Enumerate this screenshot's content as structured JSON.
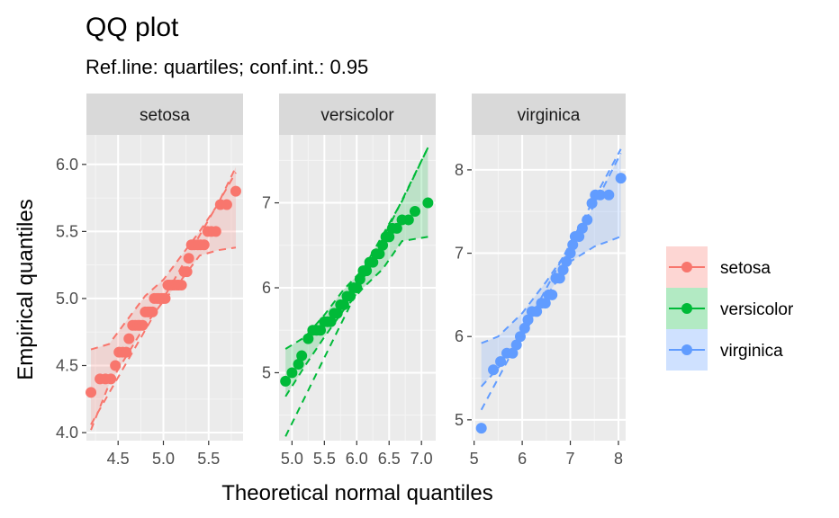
{
  "chart_data": {
    "type": "scatter",
    "title": "QQ plot",
    "subtitle": "Ref.line: quartiles; conf.int.: 0.95",
    "xlabel": "Theoretical normal quantiles",
    "ylabel": "Empirical quantiles",
    "grid": true,
    "legend_position": "right",
    "panels": [
      {
        "name": "setosa",
        "color": "#F8766D",
        "xlim": [
          4.15,
          5.88
        ],
        "ylim": [
          3.94,
          6.22
        ],
        "x_ticks": [
          "4.5",
          "5.0",
          "5.5"
        ],
        "x_tick_values": [
          4.5,
          5.0,
          5.5
        ],
        "y_ticks": [
          "4.0",
          "4.5",
          "5.0",
          "5.5",
          "6.0"
        ],
        "y_tick_values": [
          4.0,
          4.5,
          5.0,
          5.5,
          6.0
        ],
        "points": [
          [
            4.2,
            4.3
          ],
          [
            4.3,
            4.4
          ],
          [
            4.36,
            4.4
          ],
          [
            4.42,
            4.4
          ],
          [
            4.47,
            4.5
          ],
          [
            4.51,
            4.6
          ],
          [
            4.55,
            4.6
          ],
          [
            4.59,
            4.6
          ],
          [
            4.62,
            4.7
          ],
          [
            4.66,
            4.8
          ],
          [
            4.69,
            4.8
          ],
          [
            4.72,
            4.8
          ],
          [
            4.74,
            4.8
          ],
          [
            4.77,
            4.8
          ],
          [
            4.8,
            4.9
          ],
          [
            4.83,
            4.9
          ],
          [
            4.85,
            4.9
          ],
          [
            4.88,
            4.9
          ],
          [
            4.9,
            5.0
          ],
          [
            4.93,
            5.0
          ],
          [
            4.95,
            5.0
          ],
          [
            4.98,
            5.0
          ],
          [
            5.0,
            5.0
          ],
          [
            5.02,
            5.0
          ],
          [
            5.05,
            5.1
          ],
          [
            5.07,
            5.1
          ],
          [
            5.1,
            5.1
          ],
          [
            5.12,
            5.1
          ],
          [
            5.15,
            5.1
          ],
          [
            5.17,
            5.1
          ],
          [
            5.2,
            5.1
          ],
          [
            5.23,
            5.2
          ],
          [
            5.26,
            5.2
          ],
          [
            5.28,
            5.3
          ],
          [
            5.31,
            5.4
          ],
          [
            5.34,
            5.4
          ],
          [
            5.38,
            5.4
          ],
          [
            5.41,
            5.4
          ],
          [
            5.45,
            5.4
          ],
          [
            5.49,
            5.5
          ],
          [
            5.53,
            5.5
          ],
          [
            5.58,
            5.5
          ],
          [
            5.63,
            5.7
          ],
          [
            5.7,
            5.7
          ],
          [
            5.8,
            5.8
          ]
        ],
        "ref_line": [
          [
            4.2,
            4.06
          ],
          [
            5.8,
            5.94
          ]
        ],
        "band_upper": [
          [
            4.2,
            4.62
          ],
          [
            4.4,
            4.66
          ],
          [
            4.6,
            4.84
          ],
          [
            4.8,
            5.02
          ],
          [
            5.0,
            5.14
          ],
          [
            5.2,
            5.32
          ],
          [
            5.4,
            5.5
          ],
          [
            5.6,
            5.7
          ],
          [
            5.8,
            5.98
          ]
        ],
        "band_lower": [
          [
            4.2,
            4.02
          ],
          [
            4.4,
            4.36
          ],
          [
            4.6,
            4.58
          ],
          [
            4.8,
            4.8
          ],
          [
            5.0,
            4.98
          ],
          [
            5.2,
            5.14
          ],
          [
            5.4,
            5.32
          ],
          [
            5.6,
            5.36
          ],
          [
            5.8,
            5.38
          ]
        ]
      },
      {
        "name": "versicolor",
        "color": "#00BA38",
        "xlim": [
          4.8,
          7.22
        ],
        "ylim": [
          4.2,
          7.8
        ],
        "x_ticks": [
          "5.0",
          "5.5",
          "6.0",
          "6.5",
          "7.0"
        ],
        "x_tick_values": [
          5.0,
          5.5,
          6.0,
          6.5,
          7.0
        ],
        "y_ticks": [
          "5",
          "6",
          "7"
        ],
        "y_tick_values": [
          5,
          6,
          7
        ],
        "points": [
          [
            4.9,
            4.9
          ],
          [
            5.0,
            5.0
          ],
          [
            5.1,
            5.1
          ],
          [
            5.15,
            5.2
          ],
          [
            5.25,
            5.4
          ],
          [
            5.32,
            5.5
          ],
          [
            5.38,
            5.5
          ],
          [
            5.44,
            5.5
          ],
          [
            5.5,
            5.6
          ],
          [
            5.55,
            5.6
          ],
          [
            5.6,
            5.6
          ],
          [
            5.65,
            5.7
          ],
          [
            5.7,
            5.7
          ],
          [
            5.75,
            5.8
          ],
          [
            5.8,
            5.8
          ],
          [
            5.85,
            5.9
          ],
          [
            5.9,
            5.9
          ],
          [
            5.95,
            6.0
          ],
          [
            6.0,
            6.0
          ],
          [
            6.05,
            6.1
          ],
          [
            6.1,
            6.2
          ],
          [
            6.15,
            6.2
          ],
          [
            6.2,
            6.3
          ],
          [
            6.25,
            6.3
          ],
          [
            6.3,
            6.4
          ],
          [
            6.35,
            6.4
          ],
          [
            6.4,
            6.5
          ],
          [
            6.45,
            6.6
          ],
          [
            6.5,
            6.6
          ],
          [
            6.55,
            6.7
          ],
          [
            6.62,
            6.7
          ],
          [
            6.7,
            6.8
          ],
          [
            6.8,
            6.8
          ],
          [
            6.9,
            6.9
          ],
          [
            7.1,
            7.0
          ]
        ],
        "ref_line": [
          [
            4.9,
            4.25
          ],
          [
            7.1,
            7.65
          ]
        ],
        "band_upper": [
          [
            4.9,
            5.28
          ],
          [
            5.2,
            5.42
          ],
          [
            5.5,
            5.68
          ],
          [
            5.8,
            5.98
          ],
          [
            6.1,
            6.22
          ],
          [
            6.4,
            6.62
          ],
          [
            6.7,
            7.02
          ],
          [
            7.1,
            7.65
          ]
        ],
        "band_lower": [
          [
            4.9,
            4.72
          ],
          [
            5.2,
            5.08
          ],
          [
            5.5,
            5.42
          ],
          [
            5.8,
            5.74
          ],
          [
            6.1,
            6.0
          ],
          [
            6.4,
            6.22
          ],
          [
            6.7,
            6.55
          ],
          [
            7.1,
            6.6
          ]
        ]
      },
      {
        "name": "virginica",
        "color": "#619CFF",
        "xlim": [
          4.95,
          8.15
        ],
        "ylim": [
          4.75,
          8.42
        ],
        "x_ticks": [
          "5",
          "6",
          "7",
          "8"
        ],
        "x_tick_values": [
          5,
          6,
          7,
          8
        ],
        "y_ticks": [
          "5",
          "6",
          "7",
          "8"
        ],
        "y_tick_values": [
          5,
          6,
          7,
          8
        ],
        "points": [
          [
            5.15,
            4.9
          ],
          [
            5.4,
            5.6
          ],
          [
            5.55,
            5.7
          ],
          [
            5.68,
            5.8
          ],
          [
            5.8,
            5.8
          ],
          [
            5.88,
            5.9
          ],
          [
            5.96,
            6.0
          ],
          [
            6.05,
            6.1
          ],
          [
            6.12,
            6.2
          ],
          [
            6.2,
            6.3
          ],
          [
            6.3,
            6.3
          ],
          [
            6.4,
            6.4
          ],
          [
            6.48,
            6.4
          ],
          [
            6.55,
            6.5
          ],
          [
            6.62,
            6.5
          ],
          [
            6.7,
            6.7
          ],
          [
            6.78,
            6.7
          ],
          [
            6.85,
            6.8
          ],
          [
            6.92,
            6.9
          ],
          [
            7.0,
            7.0
          ],
          [
            7.05,
            7.1
          ],
          [
            7.1,
            7.2
          ],
          [
            7.18,
            7.2
          ],
          [
            7.25,
            7.3
          ],
          [
            7.35,
            7.4
          ],
          [
            7.45,
            7.6
          ],
          [
            7.52,
            7.7
          ],
          [
            7.62,
            7.7
          ],
          [
            7.8,
            7.7
          ],
          [
            8.05,
            7.9
          ]
        ],
        "ref_line": [
          [
            5.15,
            5.12
          ],
          [
            8.05,
            8.25
          ]
        ],
        "band_upper": [
          [
            5.15,
            5.92
          ],
          [
            5.5,
            6.0
          ],
          [
            6.0,
            6.28
          ],
          [
            6.5,
            6.66
          ],
          [
            7.0,
            7.08
          ],
          [
            7.5,
            7.58
          ],
          [
            8.05,
            8.2
          ]
        ],
        "band_lower": [
          [
            5.15,
            5.4
          ],
          [
            5.5,
            5.62
          ],
          [
            6.0,
            6.0
          ],
          [
            6.5,
            6.48
          ],
          [
            7.0,
            6.9
          ],
          [
            7.5,
            7.08
          ],
          [
            8.05,
            7.2
          ]
        ]
      }
    ],
    "legend": [
      {
        "name": "setosa",
        "color": "#F8766D"
      },
      {
        "name": "versicolor",
        "color": "#00BA38"
      },
      {
        "name": "virginica",
        "color": "#619CFF"
      }
    ]
  }
}
